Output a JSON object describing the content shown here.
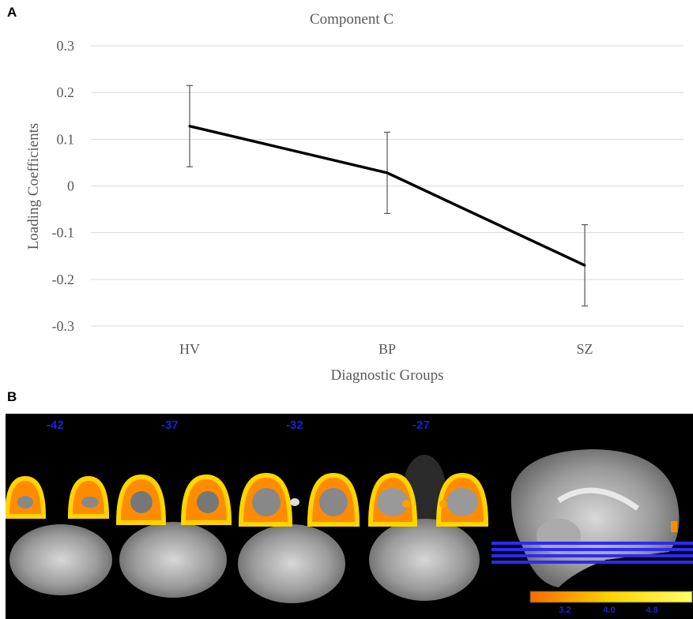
{
  "panel_a_label": "A",
  "panel_b_label": "B",
  "chart_data": {
    "type": "line",
    "title": "Component C",
    "xlabel": "Diagnostic Groups",
    "ylabel": "Loading Coefficients",
    "categories": [
      "HV",
      "BP",
      "SZ"
    ],
    "series": [
      {
        "values": [
          0.128,
          0.028,
          -0.17
        ],
        "error_upper": [
          0.215,
          0.115,
          -0.083
        ],
        "error_lower": [
          0.041,
          -0.059,
          -0.257
        ],
        "color": "#000000"
      }
    ],
    "ylim": [
      -0.3,
      0.3
    ],
    "yticks": [
      0.3,
      0.2,
      0.1,
      0,
      -0.1,
      -0.2,
      -0.3
    ],
    "ytick_labels": [
      "0.3",
      "0.2",
      "0.1",
      "0",
      "-0.1",
      "-0.2",
      "-0.3"
    ],
    "grid": true,
    "grid_color": "#d9d9d9",
    "text_color": "#595959"
  },
  "brain_panel": {
    "slice_labels": [
      "-42",
      "-37",
      "-32",
      "-27"
    ],
    "colorbar_ticks": [
      "3.2",
      "4.0",
      "4.8"
    ],
    "colorbar_colors": [
      "#ff6a00",
      "#ffd400",
      "#ffff66"
    ],
    "label_color": "#1f1fd6"
  }
}
